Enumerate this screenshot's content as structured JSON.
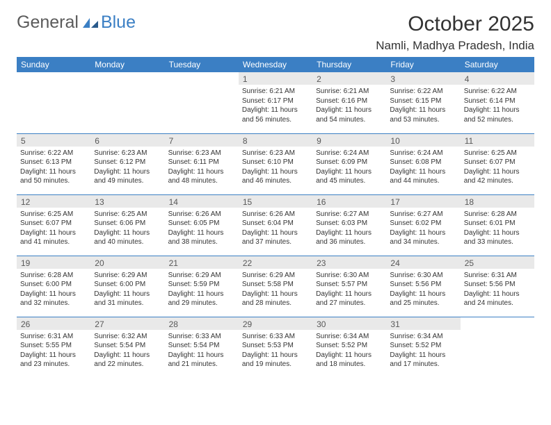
{
  "logo": {
    "text1": "General",
    "text2": "Blue"
  },
  "title": "October 2025",
  "location": "Namli, Madhya Pradesh, India",
  "colors": {
    "primary": "#3b7fc4",
    "daynum_bg": "#e9e9e9",
    "text": "#333333",
    "background": "#ffffff"
  },
  "day_headers": [
    "Sunday",
    "Monday",
    "Tuesday",
    "Wednesday",
    "Thursday",
    "Friday",
    "Saturday"
  ],
  "weeks": [
    [
      null,
      null,
      null,
      {
        "n": "1",
        "sr": "6:21 AM",
        "ss": "6:17 PM",
        "dl": "11 hours and 56 minutes."
      },
      {
        "n": "2",
        "sr": "6:21 AM",
        "ss": "6:16 PM",
        "dl": "11 hours and 54 minutes."
      },
      {
        "n": "3",
        "sr": "6:22 AM",
        "ss": "6:15 PM",
        "dl": "11 hours and 53 minutes."
      },
      {
        "n": "4",
        "sr": "6:22 AM",
        "ss": "6:14 PM",
        "dl": "11 hours and 52 minutes."
      }
    ],
    [
      {
        "n": "5",
        "sr": "6:22 AM",
        "ss": "6:13 PM",
        "dl": "11 hours and 50 minutes."
      },
      {
        "n": "6",
        "sr": "6:23 AM",
        "ss": "6:12 PM",
        "dl": "11 hours and 49 minutes."
      },
      {
        "n": "7",
        "sr": "6:23 AM",
        "ss": "6:11 PM",
        "dl": "11 hours and 48 minutes."
      },
      {
        "n": "8",
        "sr": "6:23 AM",
        "ss": "6:10 PM",
        "dl": "11 hours and 46 minutes."
      },
      {
        "n": "9",
        "sr": "6:24 AM",
        "ss": "6:09 PM",
        "dl": "11 hours and 45 minutes."
      },
      {
        "n": "10",
        "sr": "6:24 AM",
        "ss": "6:08 PM",
        "dl": "11 hours and 44 minutes."
      },
      {
        "n": "11",
        "sr": "6:25 AM",
        "ss": "6:07 PM",
        "dl": "11 hours and 42 minutes."
      }
    ],
    [
      {
        "n": "12",
        "sr": "6:25 AM",
        "ss": "6:07 PM",
        "dl": "11 hours and 41 minutes."
      },
      {
        "n": "13",
        "sr": "6:25 AM",
        "ss": "6:06 PM",
        "dl": "11 hours and 40 minutes."
      },
      {
        "n": "14",
        "sr": "6:26 AM",
        "ss": "6:05 PM",
        "dl": "11 hours and 38 minutes."
      },
      {
        "n": "15",
        "sr": "6:26 AM",
        "ss": "6:04 PM",
        "dl": "11 hours and 37 minutes."
      },
      {
        "n": "16",
        "sr": "6:27 AM",
        "ss": "6:03 PM",
        "dl": "11 hours and 36 minutes."
      },
      {
        "n": "17",
        "sr": "6:27 AM",
        "ss": "6:02 PM",
        "dl": "11 hours and 34 minutes."
      },
      {
        "n": "18",
        "sr": "6:28 AM",
        "ss": "6:01 PM",
        "dl": "11 hours and 33 minutes."
      }
    ],
    [
      {
        "n": "19",
        "sr": "6:28 AM",
        "ss": "6:00 PM",
        "dl": "11 hours and 32 minutes."
      },
      {
        "n": "20",
        "sr": "6:29 AM",
        "ss": "6:00 PM",
        "dl": "11 hours and 31 minutes."
      },
      {
        "n": "21",
        "sr": "6:29 AM",
        "ss": "5:59 PM",
        "dl": "11 hours and 29 minutes."
      },
      {
        "n": "22",
        "sr": "6:29 AM",
        "ss": "5:58 PM",
        "dl": "11 hours and 28 minutes."
      },
      {
        "n": "23",
        "sr": "6:30 AM",
        "ss": "5:57 PM",
        "dl": "11 hours and 27 minutes."
      },
      {
        "n": "24",
        "sr": "6:30 AM",
        "ss": "5:56 PM",
        "dl": "11 hours and 25 minutes."
      },
      {
        "n": "25",
        "sr": "6:31 AM",
        "ss": "5:56 PM",
        "dl": "11 hours and 24 minutes."
      }
    ],
    [
      {
        "n": "26",
        "sr": "6:31 AM",
        "ss": "5:55 PM",
        "dl": "11 hours and 23 minutes."
      },
      {
        "n": "27",
        "sr": "6:32 AM",
        "ss": "5:54 PM",
        "dl": "11 hours and 22 minutes."
      },
      {
        "n": "28",
        "sr": "6:33 AM",
        "ss": "5:54 PM",
        "dl": "11 hours and 21 minutes."
      },
      {
        "n": "29",
        "sr": "6:33 AM",
        "ss": "5:53 PM",
        "dl": "11 hours and 19 minutes."
      },
      {
        "n": "30",
        "sr": "6:34 AM",
        "ss": "5:52 PM",
        "dl": "11 hours and 18 minutes."
      },
      {
        "n": "31",
        "sr": "6:34 AM",
        "ss": "5:52 PM",
        "dl": "11 hours and 17 minutes."
      },
      null
    ]
  ],
  "labels": {
    "sunrise": "Sunrise:",
    "sunset": "Sunset:",
    "daylight": "Daylight:"
  }
}
